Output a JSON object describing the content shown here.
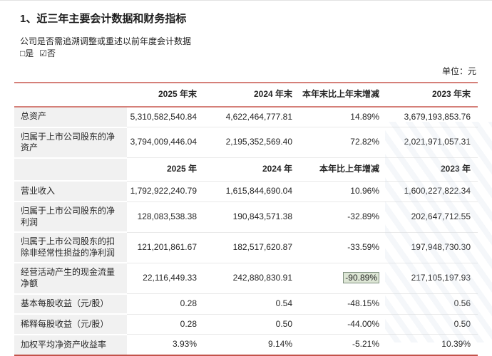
{
  "document": {
    "section_title": "1、近三年主要会计数据和财务指标",
    "question": "公司是否需追溯调整或重述以前年度会计数据",
    "options": {
      "yes_box": "□",
      "yes_label": "是",
      "no_box": "☑",
      "no_label": "否"
    },
    "unit_label": "单位：元"
  },
  "colors": {
    "accent_line": "#d58079",
    "bottom_line": "#c4524a",
    "label_column_bg": "#f1f1f1",
    "row_divider": "#e9e9e9",
    "highlight_bg": "#dde6d5",
    "highlight_border": "#7f8f7f",
    "text": "#222222"
  },
  "table": {
    "sections": [
      {
        "header": [
          "",
          "2025 年末",
          "2024 年末",
          "本年末比上年末增减",
          "2023 年末"
        ],
        "rows": [
          {
            "label": "总资产",
            "values": [
              "5,310,582,540.84",
              "4,622,464,777.81",
              "14.89%",
              "3,679,193,853.76"
            ]
          },
          {
            "label": "归属于上市公司股东的净资产",
            "values": [
              "3,794,009,446.04",
              "2,195,352,569.40",
              "72.82%",
              "2,021,971,057.31"
            ]
          }
        ]
      },
      {
        "header": [
          "",
          "2025 年",
          "2024 年",
          "本年比上年增减",
          "2023 年"
        ],
        "rows": [
          {
            "label": "营业收入",
            "values": [
              "1,792,922,240.79",
              "1,615,844,690.04",
              "10.96%",
              "1,600,227,822.34"
            ]
          },
          {
            "label": "归属于上市公司股东的净利润",
            "values": [
              "128,083,538.38",
              "190,843,571.38",
              "-32.89%",
              "202,647,712.55"
            ]
          },
          {
            "label": "归属于上市公司股东的扣除非经常性损益的净利润",
            "values": [
              "121,201,861.67",
              "182,517,620.87",
              "-33.59%",
              "197,948,730.30"
            ]
          },
          {
            "label": "经营活动产生的现金流量净额",
            "values": [
              "22,116,449.33",
              "242,880,830.91",
              "-90.89%",
              "217,105,197.93"
            ],
            "highlight_col": 2
          },
          {
            "label": "基本每股收益（元/股）",
            "values": [
              "0.28",
              "0.54",
              "-48.15%",
              "0.56"
            ]
          },
          {
            "label": "稀释每股收益（元/股）",
            "values": [
              "0.28",
              "0.50",
              "-44.00%",
              "0.50"
            ]
          },
          {
            "label": "加权平均净资产收益率",
            "values": [
              "3.93%",
              "9.14%",
              "-5.21%",
              "10.39%"
            ]
          }
        ]
      }
    ]
  }
}
